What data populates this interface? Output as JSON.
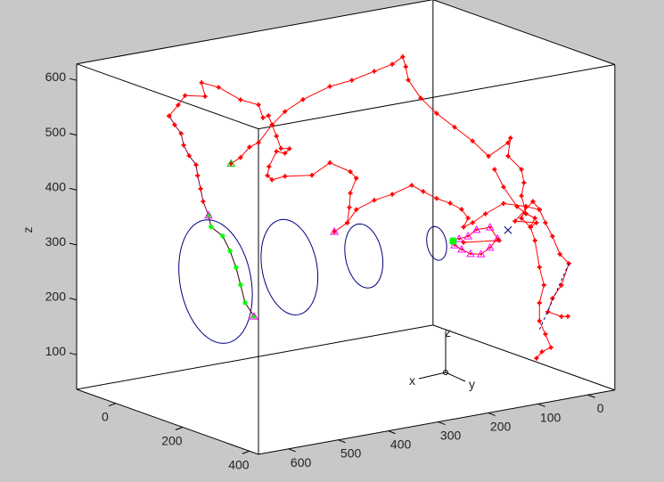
{
  "chart_data": {
    "type": "line",
    "projection": "3d",
    "xlabel": "",
    "ylabel": "",
    "zlabel": "z",
    "xlim": [
      -117,
      427
    ],
    "ylim": [
      -54,
      660
    ],
    "zlim": [
      37,
      630
    ],
    "xticks": [
      0,
      200,
      400
    ],
    "yticks": [
      0,
      100,
      200,
      300,
      400,
      500,
      600
    ],
    "zticks": [
      100,
      200,
      300,
      400,
      500,
      600
    ],
    "box": true,
    "grid": false,
    "triad_labels": {
      "x": "x",
      "y": "y",
      "z": "z"
    },
    "colors": {
      "background": "#c8c8c8",
      "axes": "#ffffff",
      "red": "#ff0000",
      "purple": "#800040",
      "green": "#00ff00",
      "magenta": "#ff00ff",
      "blue": "#000080"
    },
    "gates": [
      {
        "center": [
          0,
          460,
          226
        ],
        "radius": 110
      },
      {
        "center": [
          0,
          312,
          228
        ],
        "radius": 85
      },
      {
        "center": [
          0,
          163,
          224
        ],
        "radius": 57
      },
      {
        "center": [
          0,
          17,
          223
        ],
        "radius": 30
      }
    ],
    "series": [
      {
        "line_color": "#800040",
        "marker_color": "#ff0000",
        "marker": "plus",
        "points": [
          [
            0,
            553,
            543
          ],
          [
            0,
            542,
            525
          ],
          [
            0,
            529,
            507
          ],
          [
            0,
            524,
            485
          ],
          [
            0,
            513,
            464
          ],
          [
            0,
            499,
            445
          ],
          [
            0,
            496,
            425
          ],
          [
            0,
            490,
            400
          ],
          [
            0,
            485,
            376
          ],
          [
            0,
            474,
            349
          ]
        ]
      },
      {
        "line_color": "#400000",
        "marker_color": "#00ff00",
        "marker": "star",
        "points": [
          [
            0,
            474,
            349
          ],
          [
            0,
            469,
            327
          ],
          [
            0,
            446,
            307
          ],
          [
            0,
            431,
            277
          ],
          [
            0,
            419,
            245
          ],
          [
            0,
            410,
            212
          ],
          [
            0,
            401,
            178
          ],
          [
            0,
            383,
            150
          ]
        ]
      },
      {
        "line_color": "#ff0000",
        "marker_color": "#ff0000",
        "marker": "plus",
        "points": [
          [
            0,
            553,
            543
          ],
          [
            0,
            535,
            560
          ],
          [
            0,
            521,
            575
          ],
          [
            0,
            481,
            567
          ],
          [
            0,
            488,
            593
          ],
          [
            0,
            454,
            579
          ],
          [
            0,
            410,
            549
          ],
          [
            0,
            374,
            534
          ],
          [
            0,
            365,
            509
          ],
          [
            0,
            354,
            511
          ],
          [
            0,
            347,
            493
          ],
          [
            0,
            338,
            471
          ],
          [
            0,
            329,
            447
          ],
          [
            0,
            312,
            444
          ],
          [
            0,
            321,
            437
          ],
          [
            0,
            338,
            443
          ],
          [
            0,
            353,
            418
          ],
          [
            0,
            356,
            402
          ],
          [
            0,
            347,
            393
          ],
          [
            0,
            321,
            395
          ],
          [
            0,
            267,
            388
          ],
          [
            0,
            231,
            405
          ],
          [
            0,
            190,
            382
          ],
          [
            0,
            178,
            368
          ],
          [
            0,
            190,
            343
          ],
          [
            0,
            192,
            317
          ],
          [
            0,
            196,
            290
          ],
          [
            0,
            222,
            278
          ]
        ]
      },
      {
        "line_color": "#ff0000",
        "marker_color": "#ff0000",
        "marker": "plus",
        "points": [
          [
            0,
            429,
            436
          ],
          [
            0,
            410,
            444
          ],
          [
            0,
            392,
            460
          ],
          [
            0,
            374,
            465
          ],
          [
            0,
            347,
            493
          ],
          [
            0,
            321,
            513
          ],
          [
            0,
            285,
            529
          ],
          [
            0,
            231,
            544
          ],
          [
            0,
            187,
            548
          ],
          [
            0,
            142,
            557
          ],
          [
            0,
            106,
            564
          ],
          [
            0,
            85,
            574
          ],
          [
            0,
            79,
            555
          ],
          [
            0,
            74,
            530
          ],
          [
            0,
            49,
            493
          ],
          [
            300,
            218,
            558
          ],
          [
            300,
            182,
            527
          ],
          [
            300,
            146,
            496
          ],
          [
            300,
            114,
            463
          ],
          [
            300,
            75,
            481
          ],
          [
            300,
            70,
            489
          ],
          [
            300,
            75,
            457
          ],
          [
            300,
            48,
            428
          ],
          [
            300,
            43,
            403
          ],
          [
            300,
            48,
            380
          ],
          [
            300,
            39,
            346
          ]
        ]
      },
      {
        "line_color": "#ff0000",
        "marker_color": "#ff0000",
        "marker": "plus",
        "points": [
          [
            0,
            196,
            290
          ],
          [
            0,
            178,
            311
          ],
          [
            0,
            142,
            322
          ],
          [
            0,
            106,
            327
          ],
          [
            0,
            67,
            337
          ],
          [
            0,
            44,
            322
          ],
          [
            300,
            218,
            403
          ],
          [
            300,
            191,
            390
          ],
          [
            300,
            168,
            375
          ],
          [
            300,
            155,
            357
          ],
          [
            300,
            164,
            342
          ],
          [
            300,
            146,
            347
          ],
          [
            300,
            120,
            359
          ],
          [
            300,
            84,
            372
          ],
          [
            300,
            39,
            359
          ]
        ]
      },
      {
        "line_color": "#ff0000",
        "marker_color": "#ff0000",
        "marker": "plus",
        "points": [
          [
            300,
            102,
            437
          ],
          [
            300,
            84,
            402
          ],
          [
            300,
            57,
            362
          ],
          [
            300,
            39,
            346
          ],
          [
            300,
            21,
            335
          ],
          [
            300,
            30,
            320
          ],
          [
            300,
            48,
            339
          ],
          [
            300,
            39,
            359
          ],
          [
            300,
            12,
            349
          ],
          [
            300,
            25,
            366
          ],
          [
            300,
            61,
            336
          ],
          [
            300,
            18,
            326
          ],
          [
            300,
            30,
            320
          ]
        ]
      },
      {
        "line_color": "#ff0000",
        "marker_color": "#ff0000",
        "marker": "plus",
        "points": [
          [
            300,
            12,
            349
          ],
          [
            300,
            0,
            323
          ],
          [
            300,
            -14,
            296
          ],
          [
            300,
            -29,
            261
          ],
          [
            300,
            -47,
            241
          ],
          [
            300,
            -32,
            204
          ],
          [
            300,
            -14,
            183
          ],
          [
            300,
            -5,
            160
          ],
          [
            300,
            -32,
            147
          ],
          [
            300,
            -45,
            145
          ]
        ]
      },
      {
        "line_color": "#ff0000",
        "marker_color": "#ff0000",
        "marker": "plus",
        "points": [
          [
            300,
            30,
            320
          ],
          [
            300,
            21,
            294
          ],
          [
            300,
            12,
            244
          ],
          [
            300,
            3,
            210
          ],
          [
            300,
            12,
            179
          ],
          [
            300,
            12,
            146
          ],
          [
            300,
            0,
            120
          ],
          [
            300,
            -11,
            94
          ],
          [
            300,
            7,
            89
          ],
          [
            300,
            18,
            79
          ]
        ]
      },
      {
        "line_color": "#ff0000",
        "marker_color": "#ff00ff",
        "marker": "triangle",
        "points": [
          [
            300,
            182,
            312
          ],
          [
            300,
            168,
            302
          ],
          [
            300,
            150,
            291
          ],
          [
            300,
            129,
            287
          ],
          [
            300,
            111,
            296
          ],
          [
            300,
            96,
            310
          ],
          [
            300,
            111,
            333
          ],
          [
            300,
            138,
            333
          ],
          [
            300,
            155,
            324
          ],
          [
            300,
            173,
            322
          ]
        ]
      },
      {
        "line_color": "#ff0000",
        "marker_color": "#ff0000",
        "marker": "plus",
        "points": [
          [
            300,
            164,
            314
          ],
          [
            300,
            93,
            306
          ]
        ]
      }
    ],
    "markers": [
      {
        "point": [
          0,
          429,
          436
        ],
        "marker": "triangle",
        "color": "#00c000"
      },
      {
        "point": [
          0,
          222,
          278
        ],
        "marker": "triangle",
        "color": "#ff00ff"
      },
      {
        "point": [
          0,
          474,
          349
        ],
        "marker": "triangle",
        "color": "#ff00ff"
      },
      {
        "point": [
          0,
          383,
          150
        ],
        "marker": "triangle",
        "color": "#ff00ff"
      },
      {
        "point": [
          300,
          186,
          321
        ],
        "marker": "star",
        "color": "#00ff00"
      },
      {
        "point": [
          300,
          75,
          322
        ],
        "marker": "x",
        "color": "#000080"
      }
    ],
    "dashed_line": {
      "color": "#000080",
      "points": [
        [
          300,
          -47,
          241
        ],
        [
          300,
          12,
          130
        ]
      ]
    }
  }
}
